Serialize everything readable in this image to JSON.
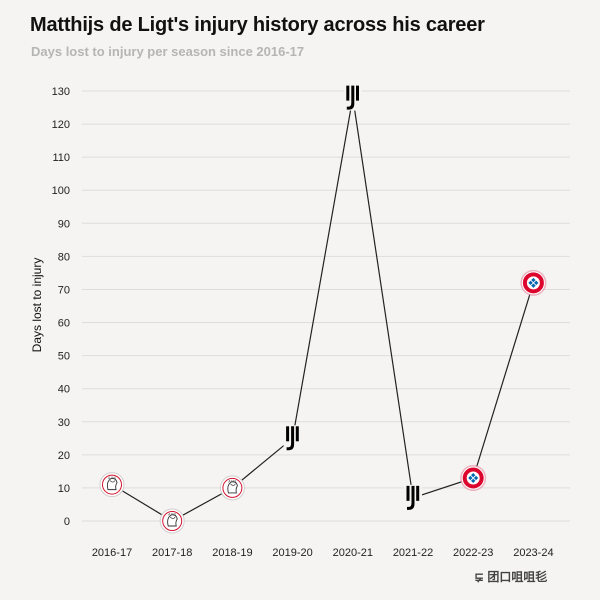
{
  "title": "Matthijs de Ligt's injury history across his career",
  "subtitle": "Days lost to injury per season since 2016-17",
  "watermark": "⋤ 团口咀咀毝",
  "chart_data": {
    "type": "line",
    "categories": [
      "2016-17",
      "2017-18",
      "2018-19",
      "2019-20",
      "2020-21",
      "2021-22",
      "2022-23",
      "2023-24"
    ],
    "values": [
      11,
      0,
      10,
      25,
      128,
      7,
      13,
      72
    ],
    "clubs": [
      "ajax",
      "ajax",
      "ajax",
      "juventus",
      "juventus",
      "juventus",
      "bayern",
      "bayern"
    ],
    "ylabel": "Days lost to injury",
    "xlabel": "",
    "ylim": [
      0,
      130
    ],
    "yticks": [
      0,
      10,
      20,
      30,
      40,
      50,
      60,
      70,
      80,
      90,
      100,
      110,
      120,
      130
    ],
    "grid": true,
    "line_color": "#222222",
    "grid_color": "#dddddd",
    "marker_icons": {
      "ajax": "ajax-crest-icon",
      "juventus": "juventus-logo-icon",
      "bayern": "bayern-crest-icon"
    },
    "club_colors": {
      "ajax": "#d2122e",
      "juventus": "#000000",
      "bayern": "#dc052d"
    }
  }
}
